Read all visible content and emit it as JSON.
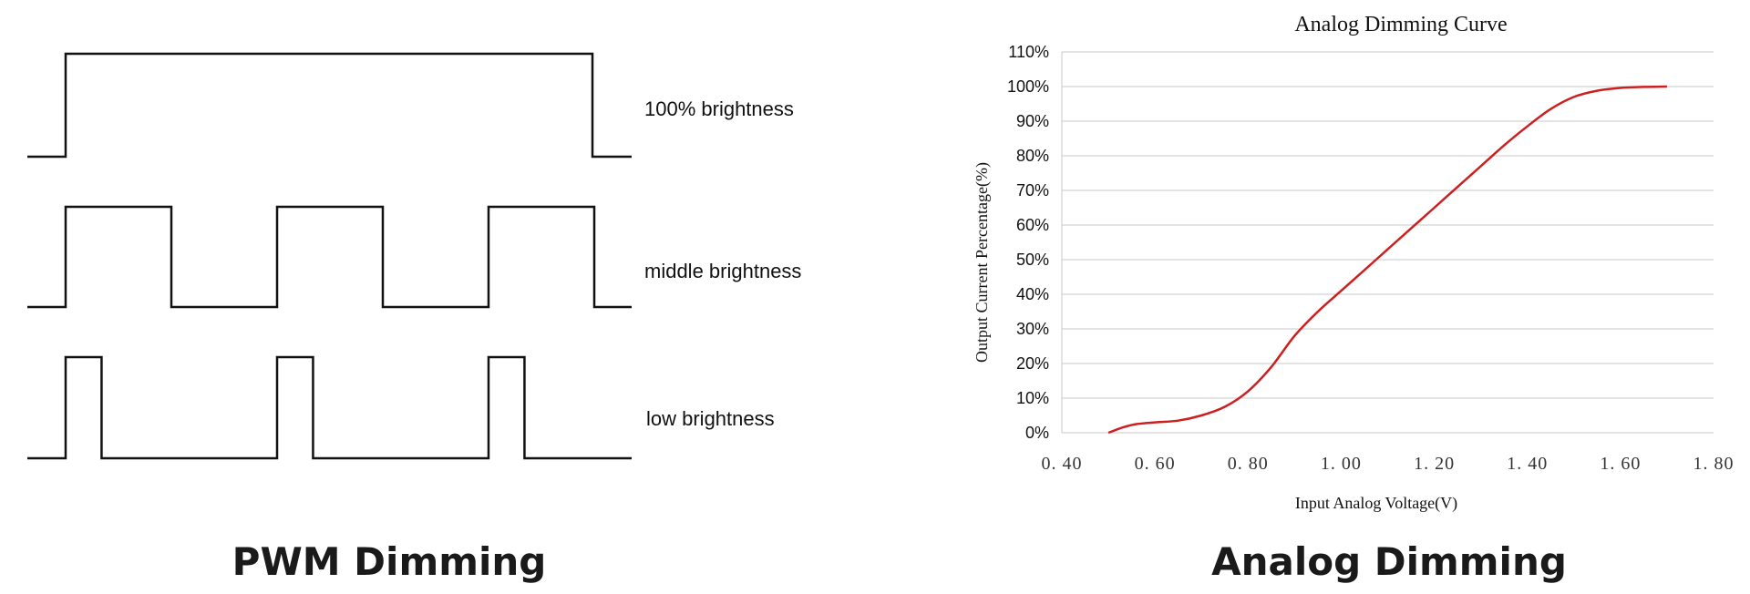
{
  "pwm": {
    "caption": "PWM Dimming",
    "waves": [
      {
        "label": "100% brightness",
        "duty_fraction": 1.0,
        "pulses": 1
      },
      {
        "label": "middle brightness",
        "duty_fraction": 0.5,
        "pulses": 3
      },
      {
        "label": "low brightness",
        "duty_fraction": 0.17,
        "pulses": 3
      }
    ]
  },
  "analog": {
    "caption": "Analog Dimming"
  },
  "chart_data": {
    "type": "line",
    "title": "Analog Dimming Curve",
    "xlabel": "Input Analog Voltage(V)",
    "ylabel": "Output Current Percentage(%)",
    "xlim": [
      0.4,
      1.8
    ],
    "ylim": [
      0,
      110
    ],
    "x_ticks": [
      0.4,
      0.6,
      0.8,
      1.0,
      1.2,
      1.4,
      1.6,
      1.8
    ],
    "x_tick_labels": [
      "0. 40",
      "0. 60",
      "0. 80",
      "1. 00",
      "1. 20",
      "1. 40",
      "1. 60",
      "1. 80"
    ],
    "y_ticks": [
      0,
      10,
      20,
      30,
      40,
      50,
      60,
      70,
      80,
      90,
      100,
      110
    ],
    "y_tick_labels": [
      "0%",
      "10%",
      "20%",
      "30%",
      "40%",
      "50%",
      "60%",
      "70%",
      "80%",
      "90%",
      "100%",
      "110%"
    ],
    "grid": true,
    "series": [
      {
        "color": "#cc1f1f",
        "x": [
          0.5,
          0.53,
          0.56,
          0.6,
          0.65,
          0.7,
          0.75,
          0.8,
          0.85,
          0.9,
          0.95,
          1.0,
          1.05,
          1.1,
          1.15,
          1.2,
          1.25,
          1.3,
          1.35,
          1.4,
          1.45,
          1.5,
          1.55,
          1.6,
          1.65,
          1.7
        ],
        "y": [
          0,
          1.5,
          2.5,
          3,
          3.5,
          5,
          7.5,
          12,
          19,
          28,
          35,
          41,
          47,
          53,
          59,
          65,
          71,
          77,
          83,
          88.5,
          93.5,
          97,
          98.8,
          99.6,
          99.9,
          100
        ]
      }
    ]
  }
}
